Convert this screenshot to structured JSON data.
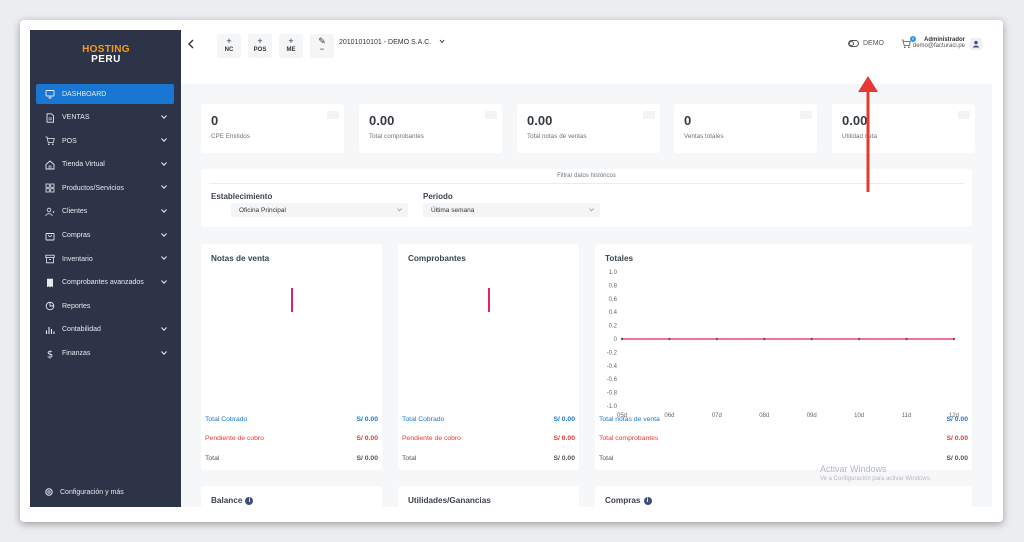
{
  "brand": {
    "line1": "HOSTING",
    "line2": "PERU"
  },
  "sidebar": {
    "items": [
      {
        "label": "DASHBOARD",
        "icon": "monitor-icon",
        "active": true,
        "expandable": false
      },
      {
        "label": "VENTAS",
        "icon": "document-icon",
        "active": false,
        "expandable": true
      },
      {
        "label": "POS",
        "icon": "cart-icon",
        "active": false,
        "expandable": true
      },
      {
        "label": "Tienda Virtual",
        "icon": "store-icon",
        "active": false,
        "expandable": true
      },
      {
        "label": "Productos/Servicios",
        "icon": "grid-icon",
        "active": false,
        "expandable": true
      },
      {
        "label": "Clientes",
        "icon": "user-icon",
        "active": false,
        "expandable": true
      },
      {
        "label": "Compras",
        "icon": "bag-icon",
        "active": false,
        "expandable": true
      },
      {
        "label": "Inventario",
        "icon": "archive-icon",
        "active": false,
        "expandable": true
      },
      {
        "label": "Comprobantes avanzados",
        "icon": "receipt-icon",
        "active": false,
        "expandable": true
      },
      {
        "label": "Reportes",
        "icon": "pie-chart-icon",
        "active": false,
        "expandable": false
      },
      {
        "label": "Contabilidad",
        "icon": "bar-chart-icon",
        "active": false,
        "expandable": true
      },
      {
        "label": "Finanzas",
        "icon": "dollar-icon",
        "active": false,
        "expandable": true
      }
    ],
    "footer": "Configuración y más"
  },
  "topbar": {
    "quick": [
      {
        "label": "NC",
        "icon": "+"
      },
      {
        "label": "POS",
        "icon": "+"
      },
      {
        "label": "ME",
        "icon": "+"
      },
      {
        "label": "--",
        "icon": "✎"
      }
    ],
    "company": "20101010101 - DEMO S.A.C.",
    "demo_label": "DEMO",
    "cart_count": "0",
    "user_name": "Administrador",
    "user_email": "demo@facturaci.pe"
  },
  "stats": [
    {
      "value": "0",
      "label": "CPE Emitidos"
    },
    {
      "value": "0.00",
      "label": "Total comprobantes"
    },
    {
      "value": "0.00",
      "label": "Total notas de ventas"
    },
    {
      "value": "0",
      "label": "Ventas totales"
    },
    {
      "value": "0.00",
      "label": "Utilidad neta"
    }
  ],
  "filter": {
    "title": "Filtrar datos históricos",
    "establishment_label": "Establecimiento",
    "establishment_value": "Oficina Principal",
    "period_label": "Periodo",
    "period_value": "Última semana"
  },
  "cards": [
    {
      "title": "Notas de venta",
      "rows": [
        {
          "label": "Total Cobrado",
          "value": "S/ 0.00",
          "color": "blue"
        },
        {
          "label": "Pendiente de cobro",
          "value": "S/ 0.00",
          "color": "red"
        },
        {
          "label": "Total",
          "value": "S/ 0.00",
          "color": "gray"
        }
      ]
    },
    {
      "title": "Comprobantes",
      "rows": [
        {
          "label": "Total Cobrado",
          "value": "S/ 0.00",
          "color": "blue"
        },
        {
          "label": "Pendiente de cobro",
          "value": "S/ 0.00",
          "color": "red"
        },
        {
          "label": "Total",
          "value": "S/ 0.00",
          "color": "gray"
        }
      ]
    },
    {
      "title": "Totales",
      "rows": [
        {
          "label": "Total notas de venta",
          "value": "S/ 0.00",
          "color": "blue"
        },
        {
          "label": "Total comprobantes",
          "value": "S/ 0.00",
          "color": "red"
        },
        {
          "label": "Total",
          "value": "S/ 0.00",
          "color": "gray"
        }
      ]
    }
  ],
  "chart_data": {
    "type": "line",
    "title": "Totales",
    "x": [
      "05d",
      "06d",
      "07d",
      "08d",
      "09d",
      "10d",
      "11d",
      "12d"
    ],
    "series": [
      {
        "values": [
          0,
          0,
          0,
          0,
          0,
          0,
          0,
          0
        ],
        "color": "#e91e63"
      }
    ],
    "yticks": [
      "1.0",
      "0.8",
      "0.6",
      "0.4",
      "0.2",
      "0",
      "-0.2",
      "-0.4",
      "-0.6",
      "-0.8",
      "-1.0"
    ],
    "ylim": [
      -1.0,
      1.0
    ],
    "grid": false
  },
  "bottom_cards": [
    {
      "title": "Balance",
      "info": true
    },
    {
      "title": "Utilidades/Ganancias",
      "info": false
    },
    {
      "title": "Compras",
      "info": true
    }
  ],
  "watermark": {
    "line1": "Activar Windows",
    "line2": "Ve a Configuración para activar Windows."
  },
  "colors": {
    "sidebar": "#2e3447",
    "accent": "#1976d2",
    "annotation_arrow": "#e53935",
    "line": "#e91e63"
  }
}
